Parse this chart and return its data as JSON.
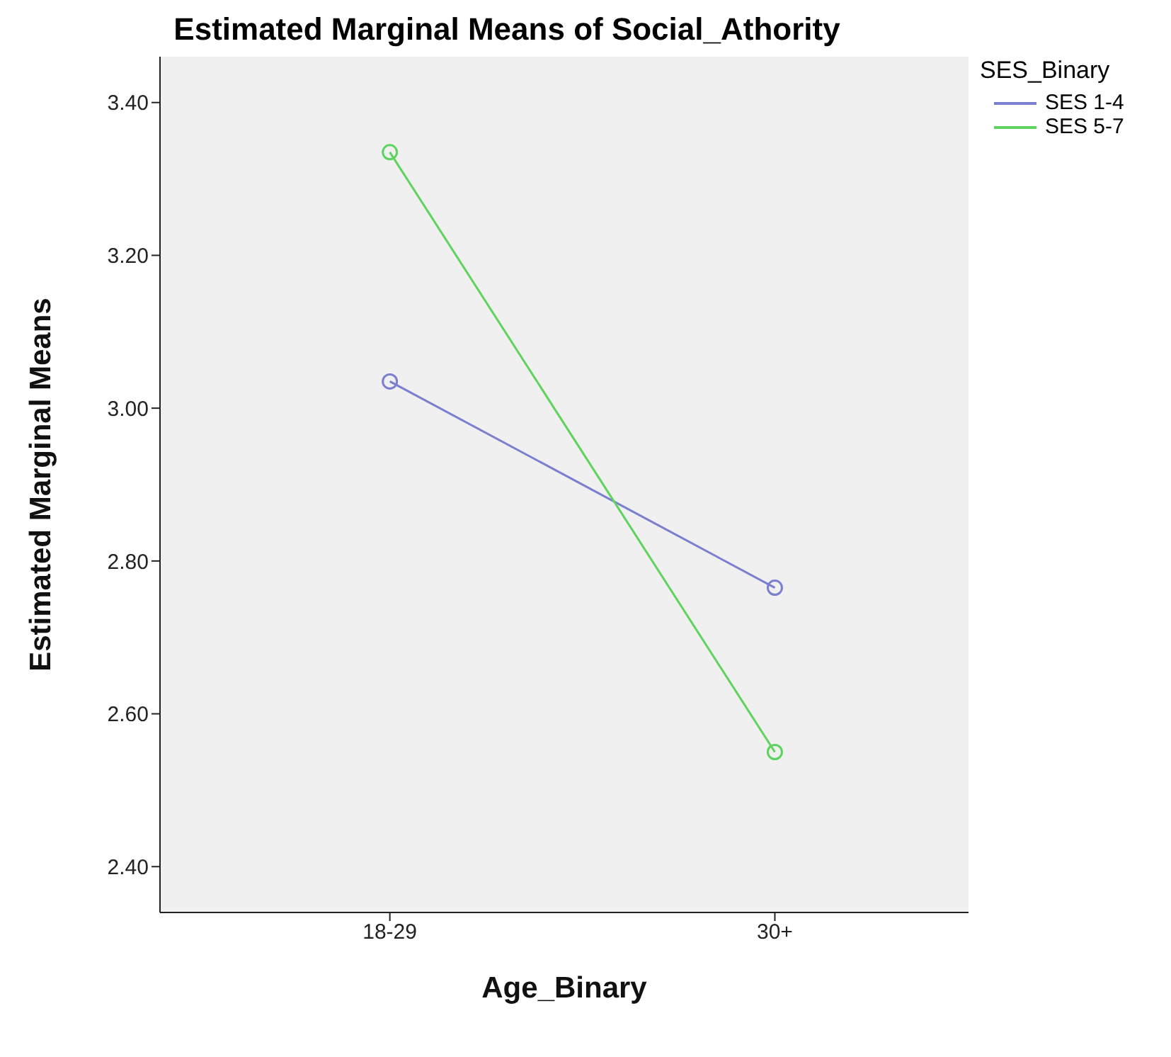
{
  "chart_data": {
    "type": "line",
    "title": "Estimated Marginal Means of Social_Athority",
    "xlabel": "Age_Binary",
    "ylabel": "Estimated Marginal Means",
    "legend_title": "SES_Binary",
    "categories": [
      "18-29",
      "30+"
    ],
    "series": [
      {
        "name": "SES 1-4",
        "color": "#7b7fcf",
        "values": [
          3.035,
          2.765
        ]
      },
      {
        "name": "SES 5-7",
        "color": "#5fd35f",
        "values": [
          3.335,
          2.55
        ]
      }
    ],
    "ylim": [
      2.34,
      3.46
    ],
    "yticks": [
      {
        "value": 2.4,
        "label": "2.40"
      },
      {
        "value": 2.6,
        "label": "2.60"
      },
      {
        "value": 2.8,
        "label": "2.80"
      },
      {
        "value": 3.0,
        "label": "3.00"
      },
      {
        "value": 3.2,
        "label": "3.20"
      },
      {
        "value": 3.4,
        "label": "3.40"
      }
    ],
    "marker": "circle",
    "legend": "top right",
    "grid": false
  }
}
